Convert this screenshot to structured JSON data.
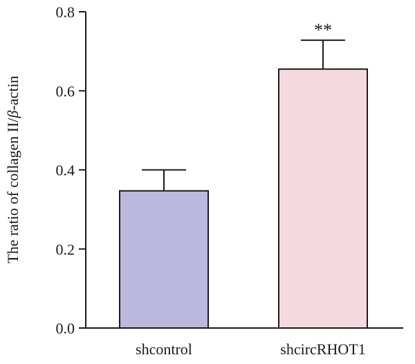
{
  "chart_data": {
    "type": "bar",
    "categories": [
      "shcontrol",
      "shcircRHOT1"
    ],
    "values": [
      0.347,
      0.655
    ],
    "errors": [
      0.053,
      0.073
    ],
    "annotations": [
      "",
      "**"
    ],
    "colors": [
      "#bdb8dd",
      "#f5d9de"
    ],
    "ylabel": {
      "prefix": "The ratio of collagen II/",
      "greek": "β",
      "suffix": "-actin"
    },
    "ylim": [
      0,
      0.8
    ],
    "yticks": [
      "0.0",
      "0.2",
      "0.4",
      "0.6",
      "0.8"
    ],
    "grid": false
  }
}
